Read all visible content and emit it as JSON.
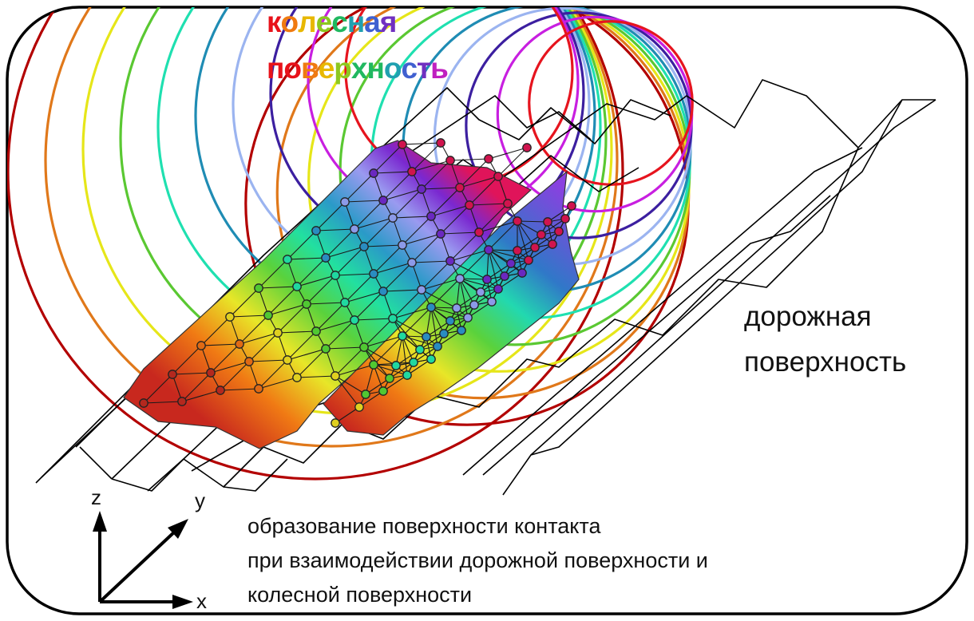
{
  "wheel_surface_label": {
    "line1": "колесная",
    "line2": "поверхность",
    "gradient_colors": [
      "#e8121a",
      "#f07a10",
      "#e8b800",
      "#8cc820",
      "#20b860",
      "#20a0b0",
      "#4060d0",
      "#7030c0",
      "#c020c0"
    ]
  },
  "road_surface_label": {
    "line1": "дорожная",
    "line2": "поверхность"
  },
  "caption": {
    "line1": "образование поверхности контакта",
    "line2": "при взаимодействии дорожной поверхности и",
    "line3": "колесной поверхности"
  },
  "axes": {
    "z": "z",
    "y": "y",
    "x": "x"
  },
  "ring_colors": [
    "#b30000",
    "#e0781a",
    "#e6e619",
    "#5ac832",
    "#1fe0b0",
    "#1f8cb4",
    "#9bb4f0",
    "#3c1fa0",
    "#c81fe0",
    "#e6141e"
  ],
  "colors": {
    "frame": "#000000",
    "road_lines": "#000000"
  }
}
